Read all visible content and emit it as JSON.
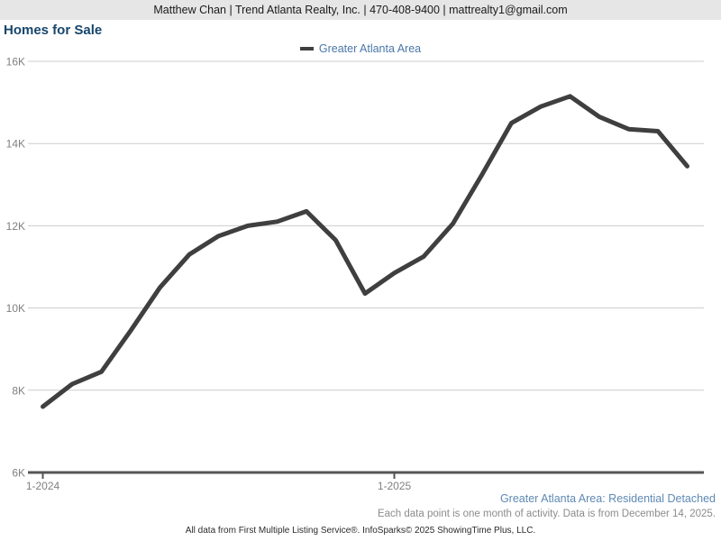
{
  "header": {
    "contact_line": "Matthew Chan | Trend Atlanta Realty, Inc. | 470-408-9400 | mattrealty1@gmail.com"
  },
  "title": "Homes for Sale",
  "legend": {
    "label": "Greater Atlanta Area",
    "swatch_color": "#3f3f3f"
  },
  "chart_data": {
    "type": "line",
    "title": "Homes for Sale",
    "categories": [
      "1-2024",
      "2-2024",
      "3-2024",
      "4-2024",
      "5-2024",
      "6-2024",
      "7-2024",
      "8-2024",
      "9-2024",
      "10-2024",
      "11-2024",
      "12-2024",
      "1-2025",
      "2-2025",
      "3-2025",
      "4-2025",
      "5-2025",
      "6-2025",
      "7-2025",
      "8-2025",
      "9-2025",
      "10-2025",
      "11-2025"
    ],
    "series": [
      {
        "name": "Greater Atlanta Area",
        "color": "#3f3f3f",
        "values": [
          7600,
          8150,
          8450,
          9450,
          10500,
          11300,
          11750,
          12000,
          12100,
          12350,
          11650,
          10350,
          10850,
          11250,
          12050,
          13250,
          14500,
          14900,
          15150,
          14650,
          14350,
          14300,
          13450
        ]
      }
    ],
    "ylim": [
      6000,
      16000
    ],
    "y_ticks": [
      {
        "label": "16K",
        "value": 16000
      },
      {
        "label": "14K",
        "value": 14000
      },
      {
        "label": "12K",
        "value": 12000
      },
      {
        "label": "10K",
        "value": 10000
      },
      {
        "label": "8K",
        "value": 8000
      },
      {
        "label": "6K",
        "value": 6000
      }
    ],
    "x_ticks": [
      {
        "label": "1-2024",
        "index": 0
      },
      {
        "label": "1-2025",
        "index": 12
      }
    ],
    "grid": true,
    "legend_position": "top-center",
    "xlabel": "",
    "ylabel": ""
  },
  "footer": {
    "series_note": "Greater Atlanta Area: Residential Detached",
    "data_note": "Each data point is one month of activity. Data is from December 14, 2025.",
    "attribution": "All data from First Multiple Listing Service®. InfoSparks© 2025 ShowingTime Plus, LLC."
  },
  "colors": {
    "header_bg": "#e6e6e6",
    "title_navy": "#17466b",
    "legend_blue": "#4a77a8",
    "footer_blue": "#5e89b4",
    "line": "#3f3f3f",
    "gridline": "#cccccc",
    "axis": "#555555",
    "tick_text": "#808080",
    "note_gray": "#8c8c8c"
  }
}
